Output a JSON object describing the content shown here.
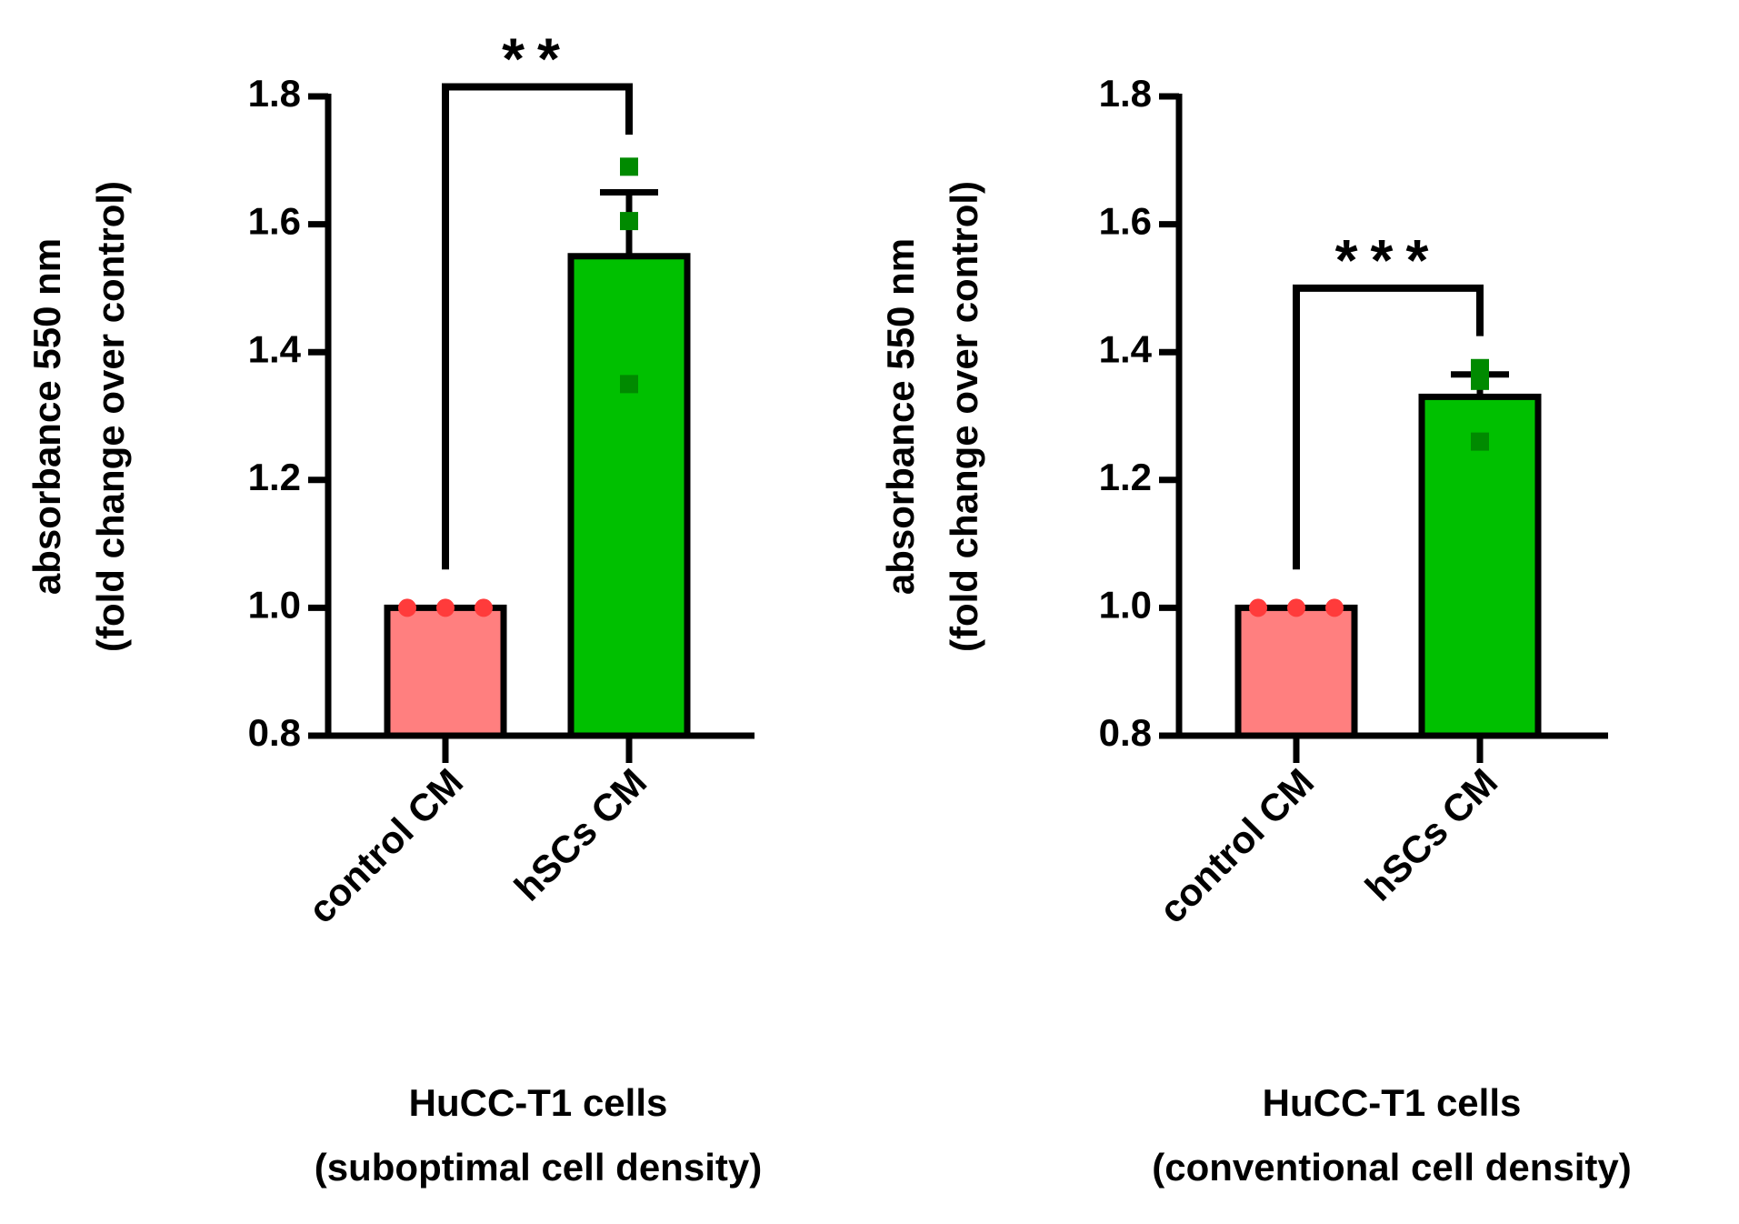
{
  "chart_data": [
    {
      "type": "bar",
      "ylabel": [
        "absorbance 550 nm",
        "(fold change over control)"
      ],
      "xlabel": [
        "HuCC-T1 cells",
        "(suboptimal cell density)"
      ],
      "categories": [
        "control CM",
        "hSCs CM"
      ],
      "values": [
        1.0,
        1.55
      ],
      "errors": [
        0,
        0.1
      ],
      "points": [
        [
          1.0,
          1.0,
          1.0
        ],
        [
          1.69,
          1.605,
          1.35
        ]
      ],
      "colors": [
        "#ff7f7f",
        "#00c000"
      ],
      "point_colors": [
        "#ff3b3b",
        "#008a00"
      ],
      "markers": [
        "circle",
        "square"
      ],
      "significance": "**",
      "ylim": [
        0.8,
        1.8
      ],
      "yticks": [
        0.8,
        {
          "value": 1,
          "label": "1.0"
        },
        1.2,
        1.4,
        1.6,
        1.8
      ]
    },
    {
      "type": "bar",
      "ylabel": [
        "absorbance 550 nm",
        "(fold change over control)"
      ],
      "xlabel": [
        "HuCC-T1 cells",
        "(conventional cell density)"
      ],
      "categories": [
        "control CM",
        "hSCs CM"
      ],
      "values": [
        1.0,
        1.33
      ],
      "errors": [
        0,
        0.035
      ],
      "points": [
        [
          1.0,
          1.0,
          1.0
        ],
        [
          1.375,
          1.355,
          1.26
        ]
      ],
      "colors": [
        "#ff7f7f",
        "#00c000"
      ],
      "point_colors": [
        "#ff3b3b",
        "#008a00"
      ],
      "markers": [
        "circle",
        "square"
      ],
      "significance": "***",
      "ylim": [
        0.8,
        1.8
      ],
      "yticks": [
        0.8,
        {
          "value": 1,
          "label": "1.0"
        },
        1.2,
        1.4,
        1.6,
        1.8
      ]
    }
  ]
}
